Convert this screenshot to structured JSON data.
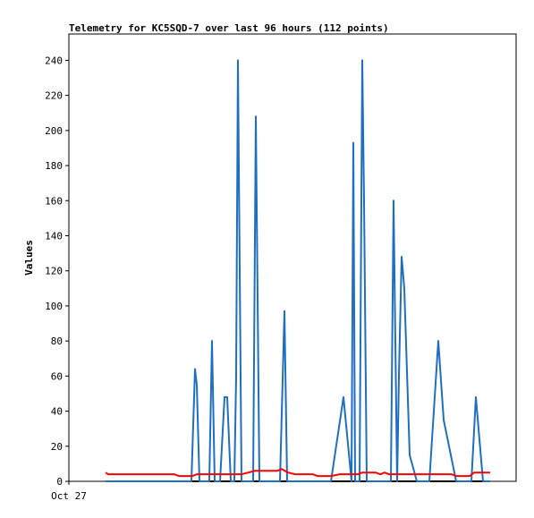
{
  "chart_data": {
    "type": "line",
    "title": "Telemetry for KC5SQD-7 over last 96 hours (112 points)",
    "ylabel": "Values",
    "xlim": [
      0,
      100
    ],
    "xticks": [
      {
        "value": 0,
        "label": "Oct 27"
      }
    ],
    "ylim": [
      0,
      255
    ],
    "yticks": [
      0,
      20,
      40,
      60,
      80,
      100,
      120,
      140,
      160,
      180,
      200,
      220,
      240
    ],
    "series": [
      {
        "color": "#000000",
        "x": [
          8.2,
          94.2
        ],
        "values": [
          0,
          0
        ]
      },
      {
        "color": "#1f6fc0",
        "x": [
          8.2,
          27.4,
          28.2,
          28.6,
          29.2,
          31.4,
          32,
          32.6,
          33.8,
          34.8,
          35.4,
          36.2,
          37,
          37.4,
          37.8,
          38.2,
          38.6,
          41.2,
          41.8,
          42.2,
          42.6,
          47.2,
          48.2,
          48.8,
          58.6,
          61.4,
          63.2,
          63.6,
          64,
          65,
          65.6,
          66,
          66.6,
          72,
          72.6,
          73,
          73.4,
          73.8,
          74.4,
          75,
          76.2,
          77.8,
          80.6,
          82.6,
          83.8,
          86.6,
          90,
          91,
          92.6,
          94.2
        ],
        "values": [
          0,
          0,
          64,
          55,
          0,
          0,
          80,
          0,
          0,
          48,
          48,
          0,
          0,
          60,
          240,
          120,
          0,
          0,
          208,
          105,
          0,
          0,
          97,
          0,
          0,
          48,
          0,
          193,
          0,
          0,
          240,
          160,
          0,
          0,
          160,
          80,
          0,
          60,
          128,
          110,
          15,
          0,
          0,
          80,
          35,
          0,
          0,
          48,
          0,
          0
        ]
      },
      {
        "color": "#ff0000",
        "x": [
          8.2,
          8.8,
          23.6,
          24.6,
          27.6,
          28.6,
          38.6,
          41.6,
          46.6,
          47.6,
          49,
          50.6,
          54.6,
          55.6,
          58.6,
          60.6,
          64.6,
          65.6,
          68.6,
          69.6,
          70.6,
          71.6,
          85.6,
          86.6,
          89.6,
          90.6,
          94.2
        ],
        "values": [
          5,
          4,
          4,
          3,
          3,
          4,
          4,
          6,
          6,
          7,
          5,
          4,
          4,
          3,
          3,
          4,
          4,
          5,
          5,
          4,
          5,
          4,
          4,
          3,
          3,
          5,
          5
        ]
      }
    ]
  }
}
